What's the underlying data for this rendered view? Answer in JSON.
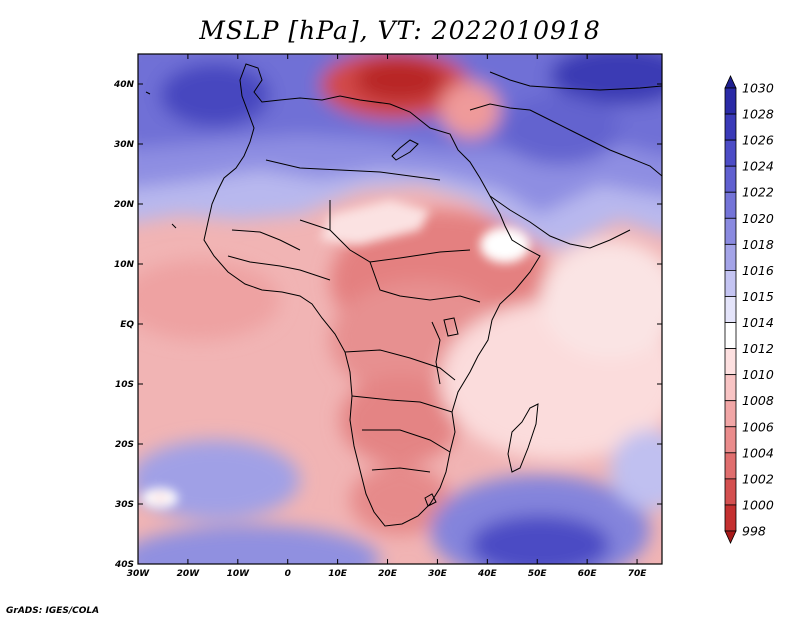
{
  "title": "MSLP [hPa], VT: 2022010918",
  "credit": "GrADS: IGES/COLA",
  "map": {
    "variable": "MSLP",
    "units": "hPa",
    "valid_time": "2022010918",
    "lon_range": [
      -30,
      75
    ],
    "lat_range": [
      -40,
      45
    ],
    "lon_ticks": [
      "30W",
      "20W",
      "10W",
      "0",
      "10E",
      "20E",
      "30E",
      "40E",
      "50E",
      "60E",
      "70E"
    ],
    "lat_ticks": [
      "40N",
      "30N",
      "20N",
      "10N",
      "EQ",
      "10S",
      "20S",
      "30S",
      "40S"
    ]
  },
  "colorbar": {
    "levels": [
      "1030",
      "1028",
      "1026",
      "1024",
      "1022",
      "1020",
      "1018",
      "1016",
      "1015",
      "1014",
      "1012",
      "1010",
      "1008",
      "1006",
      "1004",
      "1002",
      "1000",
      "998"
    ],
    "colors": [
      "#1f1f8f",
      "#2a2aa6",
      "#3a3ab8",
      "#4c4cc6",
      "#6060d0",
      "#7474d8",
      "#8a8ae0",
      "#a4a4e8",
      "#c4c4f2",
      "#e4e4fa",
      "#ffffff",
      "#fde0e0",
      "#f8c4c4",
      "#f1a6a6",
      "#ea8c8c",
      "#e06e6e",
      "#d45050",
      "#c43030",
      "#a81a1a"
    ]
  }
}
